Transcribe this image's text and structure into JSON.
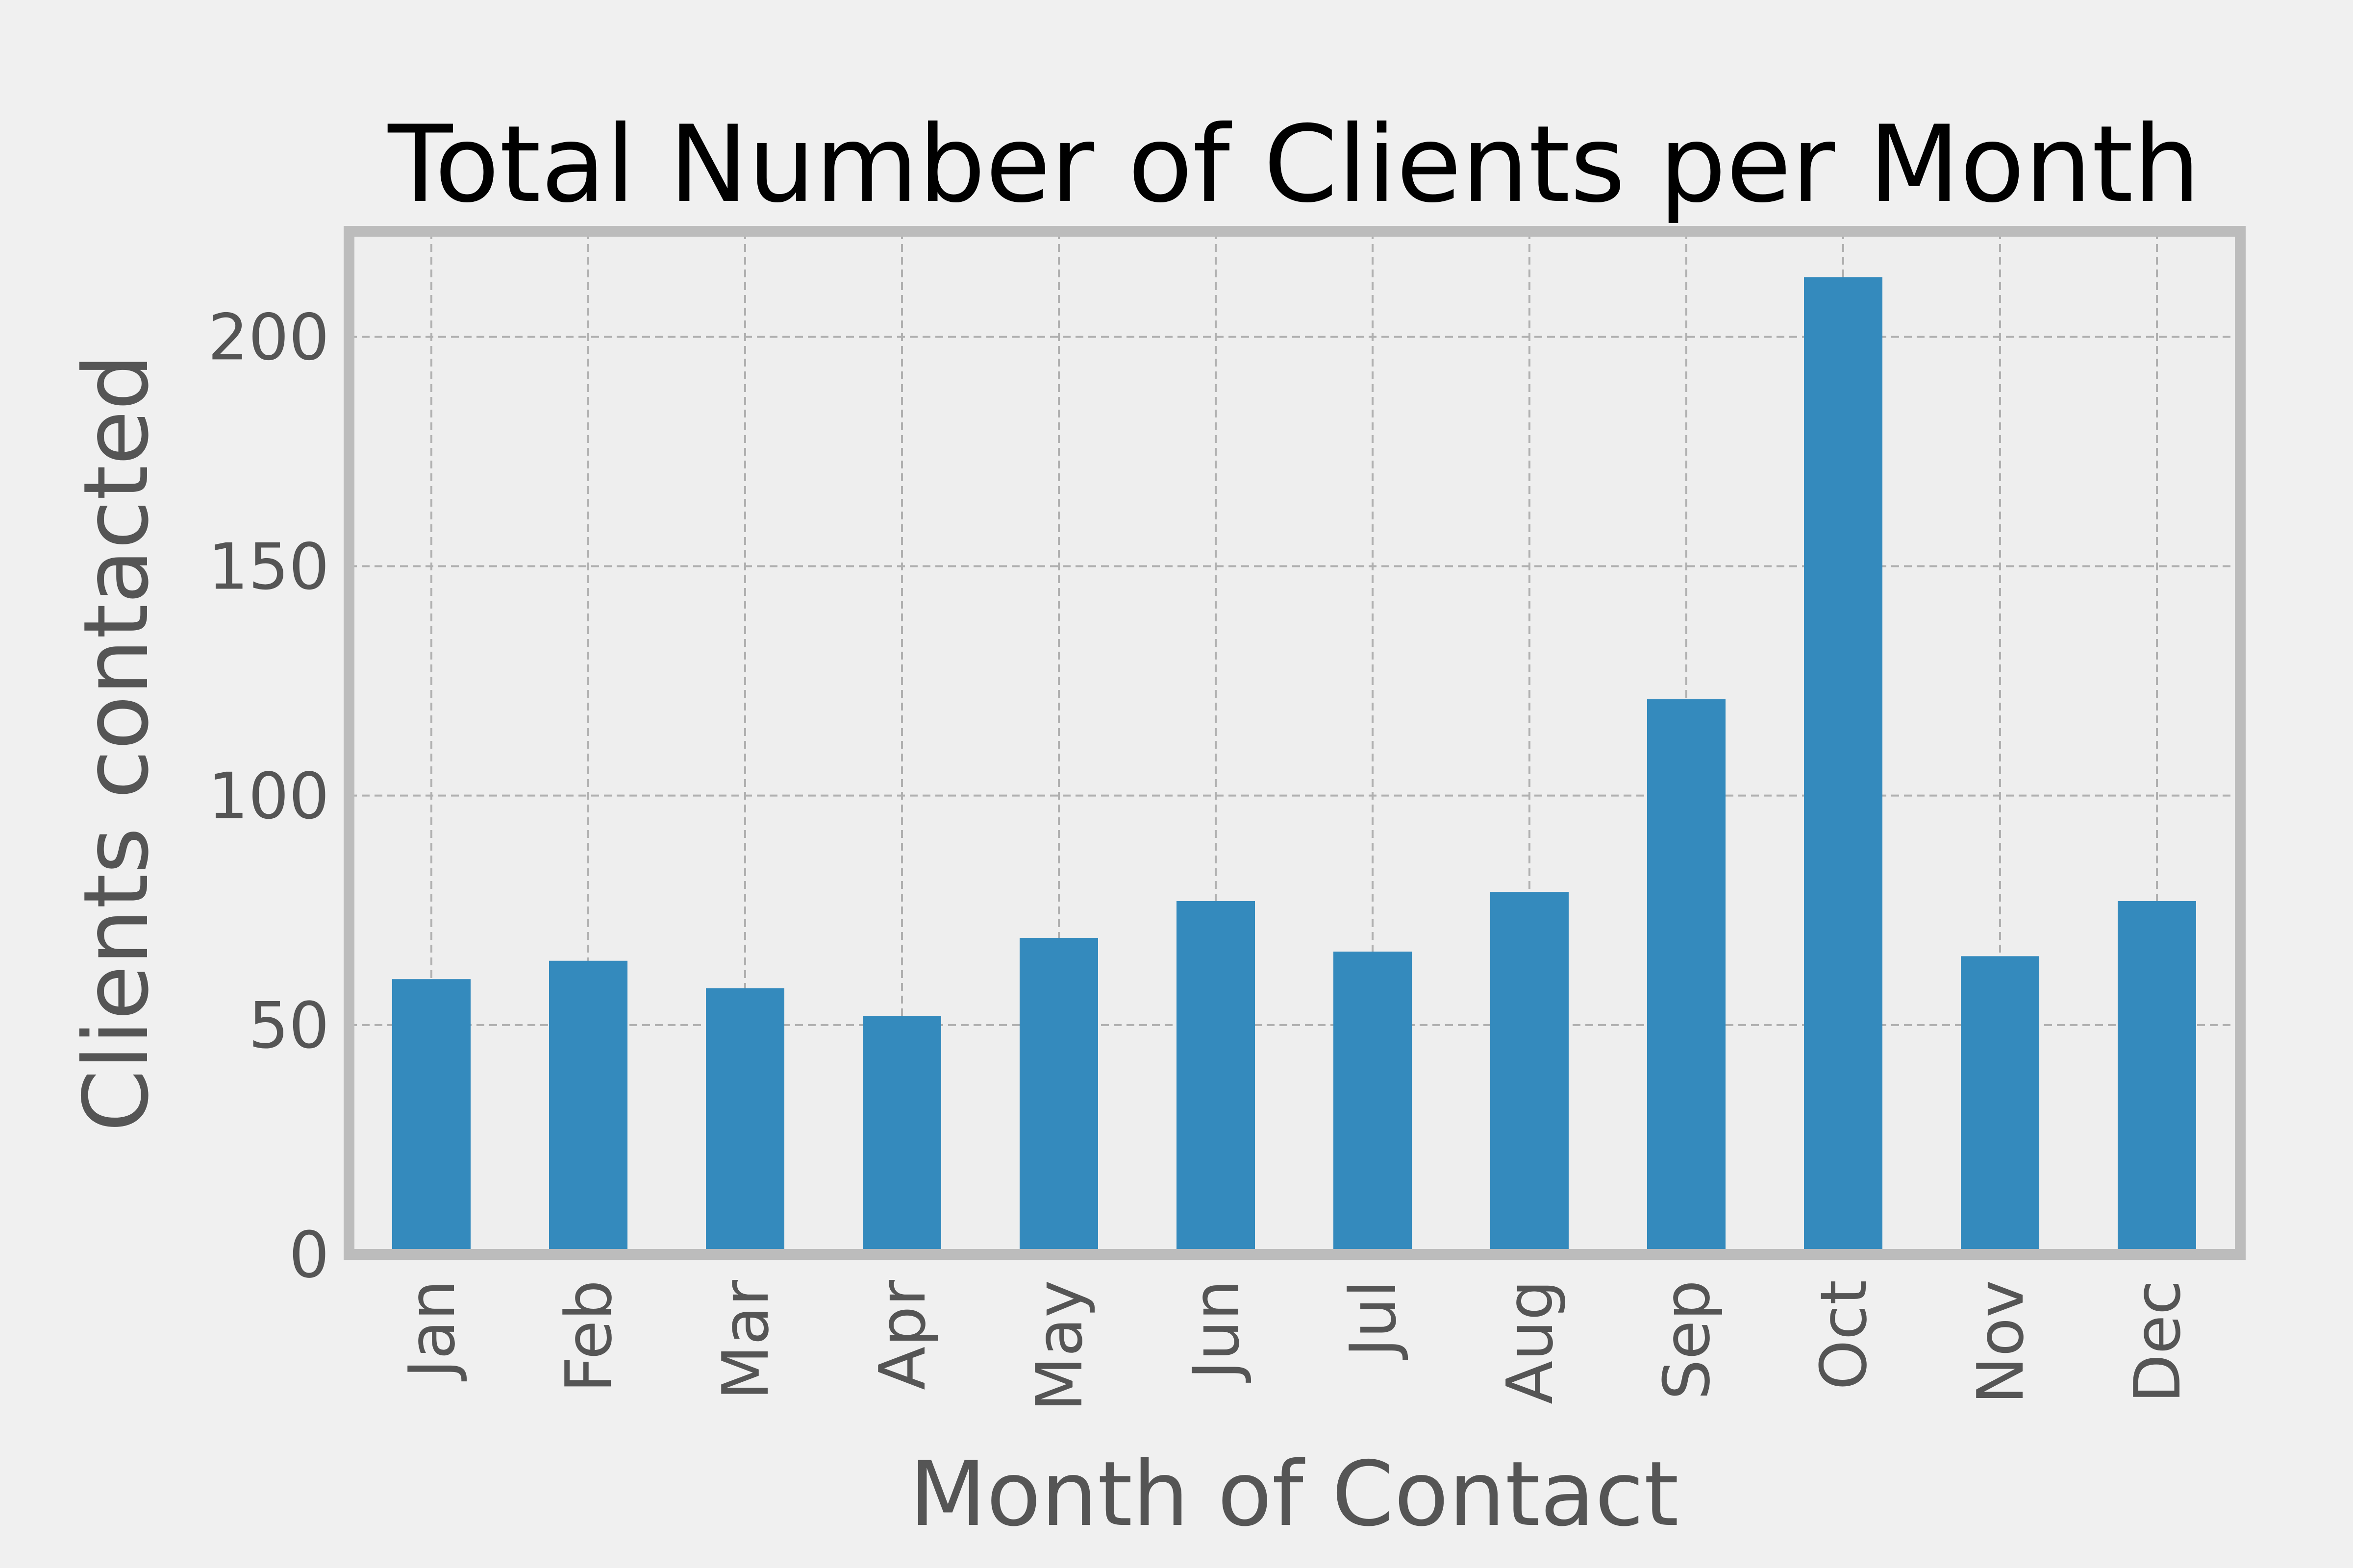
{
  "chart_data": {
    "type": "bar",
    "title": "Total Number of Clients per Month",
    "xlabel": "Month of Contact",
    "ylabel": "Clients contacted",
    "categories": [
      "Jan",
      "Feb",
      "Mar",
      "Apr",
      "May",
      "Jun",
      "Jul",
      "Aug",
      "Sep",
      "Oct",
      "Nov",
      "Dec"
    ],
    "values": [
      60,
      64,
      58,
      52,
      69,
      77,
      66,
      79,
      121,
      213,
      65,
      77
    ],
    "ylim": [
      0,
      223
    ],
    "yticks": [
      0,
      50,
      100,
      150,
      200
    ],
    "grid": true,
    "legend": "none",
    "colors": {
      "bar": "#348abd",
      "background": "#f0f0f0",
      "plot_background": "#eeeeee",
      "frame": "#bcbcbc",
      "grid": "#b0b0b0",
      "tick_text": "#555555",
      "title_text": "#000000"
    }
  }
}
